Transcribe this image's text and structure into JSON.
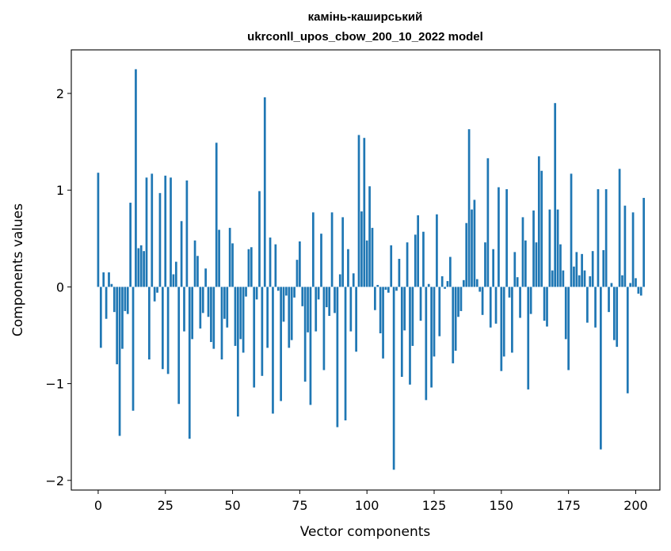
{
  "chart_data": {
    "type": "bar",
    "title_line1": "камінь-каширський",
    "title_line2": "ukrconll_upos_cbow_200_10_2022 model",
    "xlabel": "Vector components",
    "ylabel": "Components values",
    "xlim": [
      -10,
      209
    ],
    "ylim": [
      -2.1,
      2.45
    ],
    "xticks": [
      0,
      25,
      50,
      75,
      100,
      125,
      150,
      175,
      200
    ],
    "yticks": [
      -2,
      -1,
      0,
      1,
      2
    ],
    "ytick_labels": [
      "−2",
      "−1",
      "0",
      "1",
      "2"
    ],
    "grid": false,
    "legend": "none",
    "bar_color": "#1f77b4",
    "values": [
      1.18,
      -0.63,
      0.15,
      -0.33,
      0.15,
      0.03,
      -0.26,
      -0.8,
      -1.54,
      -0.64,
      -0.25,
      -0.28,
      0.87,
      -1.28,
      2.25,
      0.4,
      0.43,
      0.37,
      1.13,
      -0.75,
      1.17,
      -0.15,
      -0.06,
      0.97,
      -0.85,
      1.15,
      -0.9,
      1.13,
      0.13,
      0.26,
      -1.21,
      0.68,
      -0.46,
      1.1,
      -1.57,
      -0.54,
      0.48,
      0.32,
      -0.43,
      -0.27,
      0.19,
      -0.31,
      -0.57,
      -0.64,
      1.49,
      0.59,
      -0.75,
      -0.33,
      -0.42,
      0.61,
      0.45,
      -0.61,
      -1.34,
      -0.54,
      -0.68,
      -0.1,
      0.39,
      0.41,
      -1.04,
      -0.13,
      0.99,
      -0.92,
      1.96,
      -0.63,
      0.51,
      -1.31,
      0.44,
      -0.04,
      -1.18,
      -0.36,
      -0.09,
      -0.63,
      -0.55,
      -0.11,
      0.28,
      0.47,
      -0.2,
      -0.98,
      -0.47,
      -1.22,
      0.77,
      -0.46,
      -0.13,
      0.55,
      -0.86,
      -0.21,
      -0.3,
      0.77,
      -0.27,
      -1.45,
      0.13,
      0.72,
      -1.38,
      0.39,
      -0.46,
      0.14,
      -0.67,
      1.57,
      0.78,
      1.54,
      0.48,
      1.04,
      0.61,
      -0.24,
      0.02,
      -0.48,
      -0.74,
      -0.03,
      -0.06,
      0.43,
      -1.89,
      -0.04,
      0.29,
      -0.93,
      -0.45,
      0.46,
      -1.01,
      -0.61,
      0.54,
      0.74,
      -0.35,
      0.57,
      -1.17,
      0.03,
      -1.04,
      -0.72,
      0.75,
      -0.51,
      0.11,
      -0.02,
      0.06,
      0.31,
      -0.79,
      -0.66,
      -0.31,
      -0.25,
      0.07,
      0.66,
      1.63,
      0.8,
      0.9,
      0.08,
      -0.05,
      -0.29,
      0.46,
      1.33,
      -0.42,
      0.39,
      -0.38,
      1.03,
      -0.87,
      -0.72,
      1.01,
      -0.11,
      -0.68,
      0.36,
      0.1,
      -0.32,
      0.72,
      0.48,
      -1.06,
      -0.28,
      0.79,
      0.46,
      1.35,
      1.2,
      -0.35,
      -0.41,
      0.8,
      0.17,
      1.9,
      0.8,
      0.44,
      0.17,
      -0.54,
      -0.86,
      1.17,
      0.21,
      0.36,
      0.12,
      0.34,
      0.17,
      -0.37,
      0.11,
      0.37,
      -0.42,
      1.01,
      -1.68,
      0.38,
      1.01,
      -0.26,
      0.04,
      -0.55,
      -0.62,
      1.22,
      0.12,
      0.84,
      -1.1,
      0.04,
      0.77,
      0.09,
      -0.07,
      -0.09,
      0.92
    ]
  }
}
